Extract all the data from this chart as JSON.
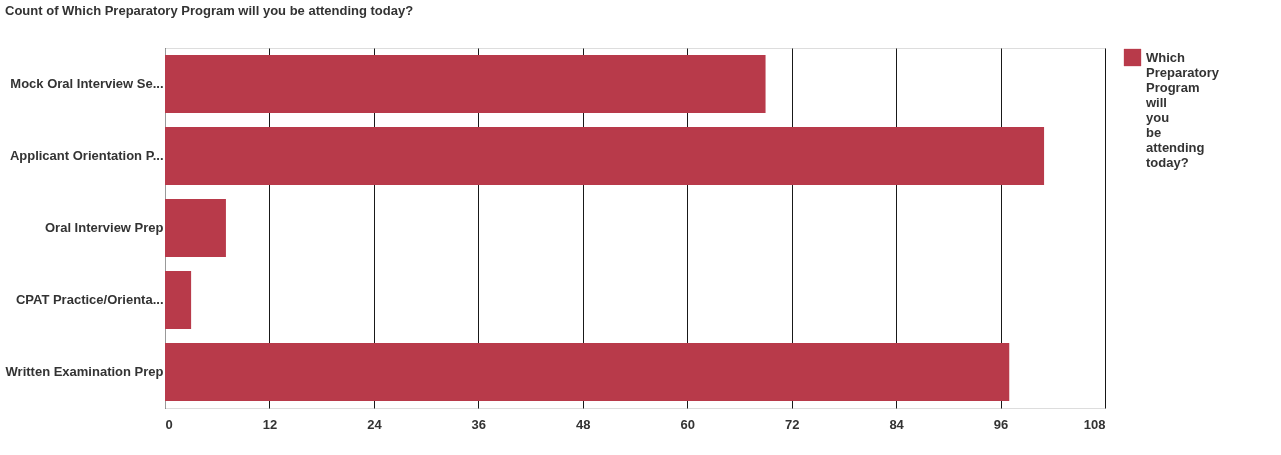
{
  "chart_data": {
    "type": "bar",
    "orientation": "horizontal",
    "title": "Count of Which Preparatory Program will you be attending today?",
    "categories": [
      "Mock Oral Interview Se...",
      "Applicant Orientation P...",
      "Oral Interview Prep",
      "CPAT Practice/Orienta...",
      "Written Examination Prep"
    ],
    "series": [
      {
        "name": "Which Preparatory Program will you be attending today?",
        "color": "#b83a4a",
        "values": [
          69,
          101,
          7,
          3,
          97
        ]
      }
    ],
    "xlim": [
      0,
      108
    ],
    "xticks": [
      0,
      12,
      24,
      36,
      48,
      60,
      72,
      84,
      96,
      108
    ],
    "grid": "x",
    "legend": "top right"
  }
}
